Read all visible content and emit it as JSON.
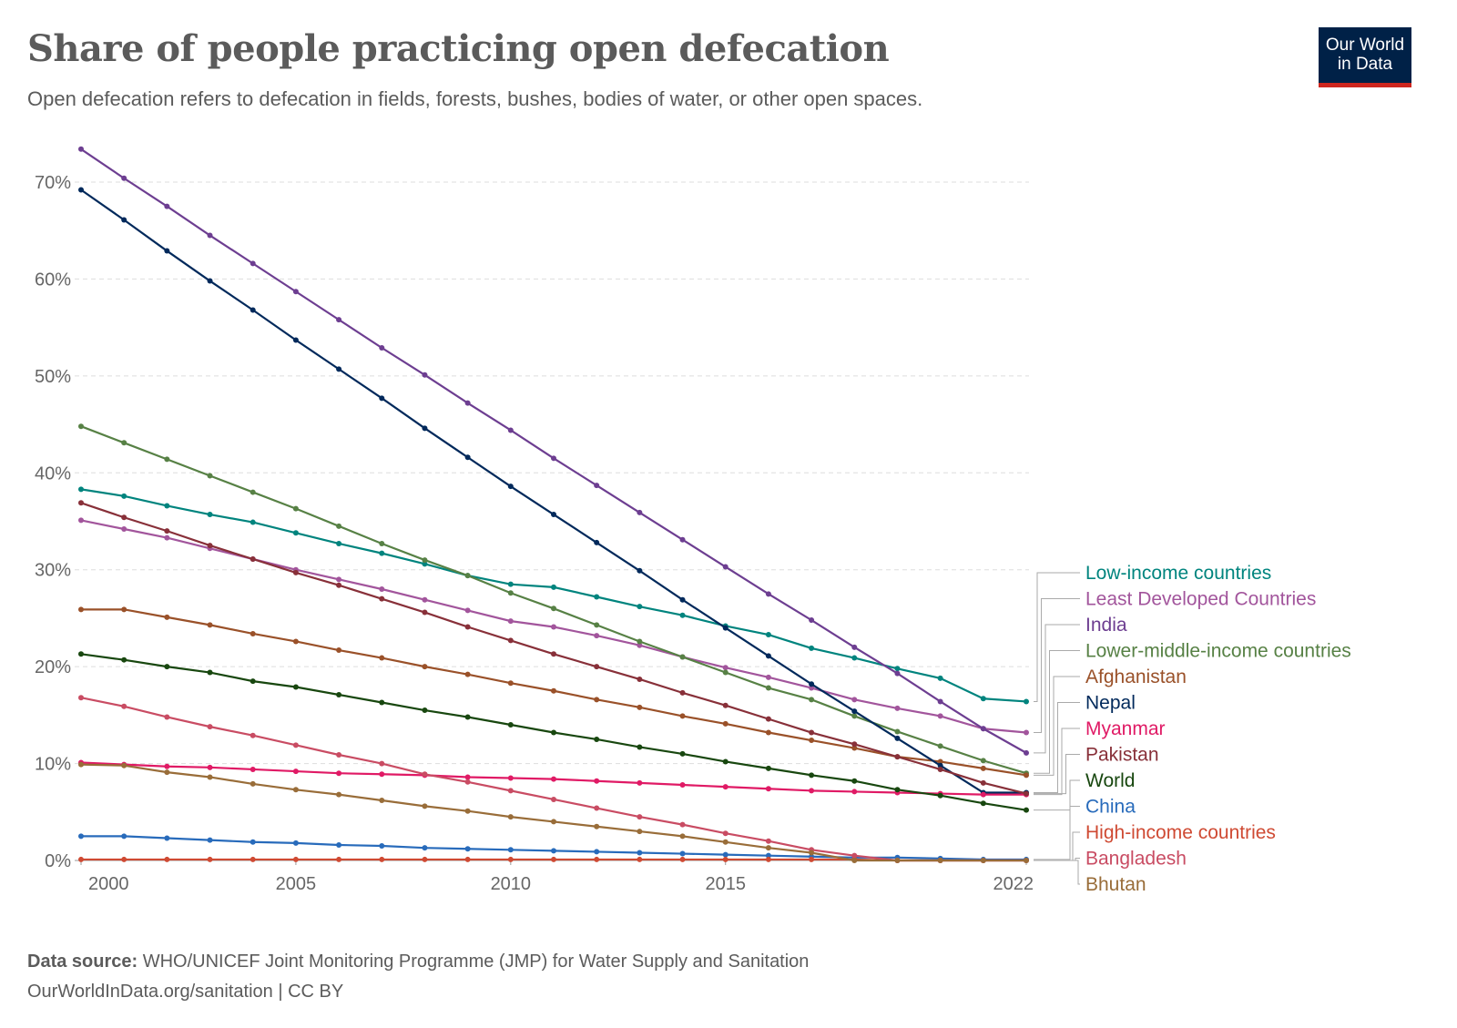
{
  "header": {
    "title": "Share of people practicing open defecation",
    "subtitle": "Open defecation refers to defecation in fields, forests, bushes, bodies of water, or other open spaces.",
    "logo_line1": "Our World",
    "logo_line2": "in Data"
  },
  "footer": {
    "source_label": "Data source:",
    "source_text": " WHO/UNICEF Joint Monitoring Programme (JMP) for Water Supply and Sanitation",
    "url_license": "OurWorldInData.org/sanitation | CC BY"
  },
  "chart_data": {
    "type": "line",
    "title": "Share of people practicing open defecation",
    "xlabel": "",
    "ylabel": "",
    "x": [
      2000,
      2001,
      2002,
      2003,
      2004,
      2005,
      2006,
      2007,
      2008,
      2009,
      2010,
      2011,
      2012,
      2013,
      2014,
      2015,
      2016,
      2017,
      2018,
      2019,
      2020,
      2021,
      2022
    ],
    "xticks": [
      "2000",
      "2005",
      "2010",
      "2015",
      "2022"
    ],
    "yticks": [
      "0%",
      "10%",
      "20%",
      "30%",
      "40%",
      "50%",
      "60%",
      "70%"
    ],
    "ylim": [
      0,
      73
    ],
    "grid": "horizontal dashed",
    "legend": "right, line-end labels",
    "series": [
      {
        "name": "Low-income countries",
        "color": "#00847e",
        "values": [
          38.3,
          37.6,
          36.6,
          35.7,
          34.9,
          33.8,
          32.7,
          31.7,
          30.6,
          29.4,
          28.5,
          28.2,
          27.2,
          26.2,
          25.3,
          24.2,
          23.3,
          21.9,
          20.9,
          19.8,
          18.8,
          16.7,
          16.4
        ]
      },
      {
        "name": "Least Developed Countries",
        "color": "#a2559c",
        "values": [
          35.1,
          34.2,
          33.3,
          32.2,
          31.1,
          30.0,
          29.0,
          28.0,
          26.9,
          25.8,
          24.7,
          24.1,
          23.2,
          22.2,
          21.0,
          19.9,
          18.9,
          17.8,
          16.6,
          15.7,
          14.9,
          13.6,
          13.2
        ]
      },
      {
        "name": "India",
        "color": "#6d3e91",
        "values": [
          73.4,
          70.4,
          67.5,
          64.5,
          61.6,
          58.7,
          55.8,
          52.9,
          50.1,
          47.2,
          44.4,
          41.5,
          38.7,
          35.9,
          33.1,
          30.3,
          27.5,
          24.8,
          22.0,
          19.3,
          16.4,
          13.6,
          11.1
        ]
      },
      {
        "name": "Lower-middle-income countries",
        "color": "#578145",
        "values": [
          44.8,
          43.1,
          41.4,
          39.7,
          38.0,
          36.3,
          34.5,
          32.7,
          31.0,
          29.4,
          27.6,
          26.0,
          24.3,
          22.6,
          21.0,
          19.4,
          17.8,
          16.6,
          14.9,
          13.3,
          11.8,
          10.3,
          9.0
        ]
      },
      {
        "name": "Afghanistan",
        "color": "#9a5129",
        "values": [
          25.9,
          25.9,
          25.1,
          24.3,
          23.4,
          22.6,
          21.7,
          20.9,
          20.0,
          19.2,
          18.3,
          17.5,
          16.6,
          15.8,
          14.9,
          14.1,
          13.2,
          12.4,
          11.6,
          10.7,
          10.2,
          9.5,
          8.8
        ]
      },
      {
        "name": "Nepal",
        "color": "#00295b",
        "values": [
          69.2,
          66.1,
          62.9,
          59.8,
          56.8,
          53.7,
          50.7,
          47.7,
          44.6,
          41.6,
          38.6,
          35.7,
          32.8,
          29.9,
          26.9,
          24.0,
          21.1,
          18.2,
          15.4,
          12.6,
          9.8,
          7.0,
          7.0
        ]
      },
      {
        "name": "Myanmar",
        "color": "#e01a65",
        "values": [
          10.1,
          9.9,
          9.7,
          9.6,
          9.4,
          9.2,
          9.0,
          8.9,
          8.8,
          8.6,
          8.5,
          8.4,
          8.2,
          8.0,
          7.8,
          7.6,
          7.4,
          7.2,
          7.1,
          7.0,
          6.9,
          6.8,
          6.8
        ]
      },
      {
        "name": "Pakistan",
        "color": "#883039",
        "values": [
          36.9,
          35.4,
          34.0,
          32.5,
          31.1,
          29.7,
          28.4,
          27.0,
          25.6,
          24.1,
          22.7,
          21.3,
          20.0,
          18.7,
          17.3,
          16.0,
          14.6,
          13.2,
          12.0,
          10.7,
          9.4,
          8.0,
          6.9
        ]
      },
      {
        "name": "World",
        "color": "#18470f",
        "values": [
          21.3,
          20.7,
          20.0,
          19.4,
          18.5,
          17.9,
          17.1,
          16.3,
          15.5,
          14.8,
          14.0,
          13.2,
          12.5,
          11.7,
          11.0,
          10.2,
          9.5,
          8.8,
          8.2,
          7.3,
          6.7,
          5.9,
          5.2
        ]
      },
      {
        "name": "China",
        "color": "#286bbb",
        "values": [
          2.5,
          2.5,
          2.3,
          2.1,
          1.9,
          1.8,
          1.6,
          1.5,
          1.3,
          1.2,
          1.1,
          1.0,
          0.9,
          0.8,
          0.7,
          0.6,
          0.5,
          0.4,
          0.3,
          0.3,
          0.2,
          0.1,
          0.1
        ]
      },
      {
        "name": "High-income countries",
        "color": "#cf4a33",
        "values": [
          0.1,
          0.1,
          0.1,
          0.1,
          0.1,
          0.1,
          0.1,
          0.1,
          0.1,
          0.1,
          0.1,
          0.1,
          0.1,
          0.1,
          0.1,
          0.1,
          0.1,
          0.1,
          0.1,
          0.0,
          0.0,
          0.0,
          0.0
        ]
      },
      {
        "name": "Bangladesh",
        "color": "#c94c63",
        "values": [
          16.8,
          15.9,
          14.8,
          13.8,
          12.9,
          11.9,
          10.9,
          10.0,
          8.9,
          8.1,
          7.2,
          6.3,
          5.4,
          4.5,
          3.7,
          2.8,
          2.0,
          1.1,
          0.5,
          0.0,
          0.0,
          0.0,
          0.0
        ]
      },
      {
        "name": "Bhutan",
        "color": "#996d39",
        "values": [
          9.9,
          9.8,
          9.1,
          8.6,
          7.9,
          7.3,
          6.8,
          6.2,
          5.6,
          5.1,
          4.5,
          4.0,
          3.5,
          3.0,
          2.5,
          1.9,
          1.3,
          0.8,
          0.0,
          0.0,
          0.0,
          0.0,
          0.0
        ]
      }
    ]
  }
}
